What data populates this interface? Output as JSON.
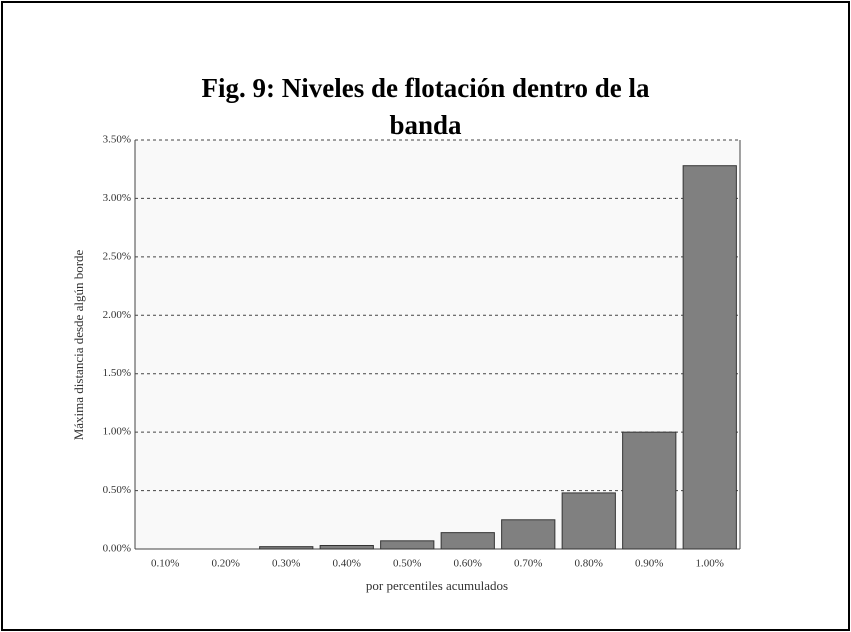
{
  "chart_data": {
    "type": "bar",
    "title": "Fig. 9: Niveles de flotación dentro de la banda",
    "ylabel": "Máxima distancia desde algún borde",
    "xlabel": "por percentiles acumulados",
    "categories": [
      "0.10%",
      "0.20%",
      "0.30%",
      "0.40%",
      "0.50%",
      "0.60%",
      "0.70%",
      "0.80%",
      "0.90%",
      "1.00%"
    ],
    "values": [
      0.0,
      0.0,
      0.02,
      0.03,
      0.07,
      0.14,
      0.25,
      0.48,
      1.0,
      3.28
    ],
    "color": "#808080",
    "ylim": [
      0,
      3.5
    ],
    "yticks": [
      {
        "value": 0,
        "label": "0.00%"
      },
      {
        "value": 0.5,
        "label": "0.50%"
      },
      {
        "value": 1,
        "label": "1.00%"
      },
      {
        "value": 1.5,
        "label": "1.50%"
      },
      {
        "value": 2,
        "label": "2.00%"
      },
      {
        "value": 2.5,
        "label": "2.50%"
      },
      {
        "value": 3,
        "label": "3.00%"
      },
      {
        "value": 3.5,
        "label": "3.50%"
      }
    ],
    "grid": true
  }
}
